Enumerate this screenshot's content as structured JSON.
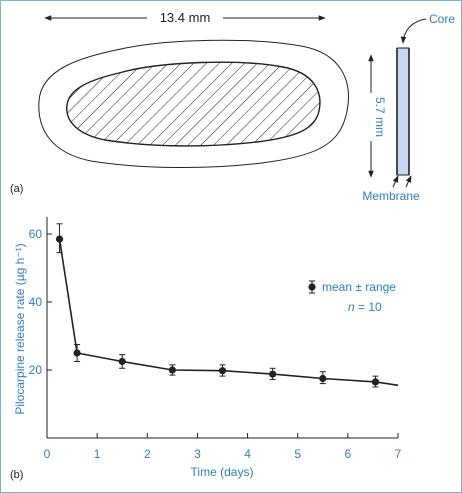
{
  "panel_a": {
    "label": "(a)",
    "length_label": "13.4 mm",
    "width_label": "5.7 mm",
    "core_label": "Core",
    "membrane_label": "Membrane"
  },
  "panel_b": {
    "label": "(b)"
  },
  "colors": {
    "accent": "#2f7fc1",
    "core_fill": "#c9d8f0",
    "frame": "#7fb0d8"
  },
  "chart_data": {
    "type": "line",
    "xlabel": "Time (days)",
    "ylabel": "Pilocarpine release rate (µg h⁻¹)",
    "xlim": [
      0,
      7
    ],
    "ylim": [
      0,
      65
    ],
    "x_ticks": [
      0,
      1,
      2,
      3,
      4,
      5,
      6,
      7
    ],
    "y_ticks": [
      20,
      40,
      60
    ],
    "series": [
      {
        "name": "mean ± range",
        "points": [
          {
            "x": 0.25,
            "y": 58.5,
            "lo": 54.5,
            "hi": 63
          },
          {
            "x": 0.6,
            "y": 25,
            "lo": 22.5,
            "hi": 27.5
          },
          {
            "x": 1.5,
            "y": 22.5,
            "lo": 20.5,
            "hi": 24.5
          },
          {
            "x": 2.5,
            "y": 20,
            "lo": 18.5,
            "hi": 21.5
          },
          {
            "x": 3.5,
            "y": 19.8,
            "lo": 18.2,
            "hi": 21.5
          },
          {
            "x": 4.5,
            "y": 18.8,
            "lo": 17.2,
            "hi": 20.5
          },
          {
            "x": 5.5,
            "y": 17.5,
            "lo": 16,
            "hi": 19.5
          },
          {
            "x": 6.55,
            "y": 16.5,
            "lo": 15,
            "hi": 18.2
          }
        ],
        "trend_end": {
          "x": 7.0,
          "y": 15.5
        }
      }
    ],
    "legend": {
      "label": "mean ± range",
      "n_var": "n",
      "n_rest": " = 10",
      "position": "top-right"
    }
  }
}
